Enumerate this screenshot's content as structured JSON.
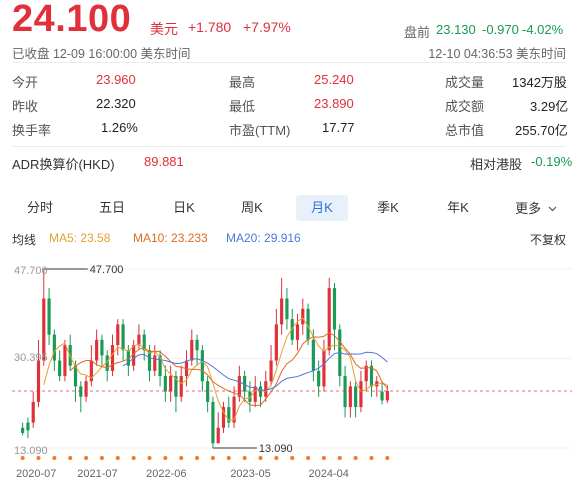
{
  "quote": {
    "price": "24.100",
    "currency": "美元",
    "change": "+1.780",
    "change_pct": "+7.97%",
    "status": "已收盘 12-09 16:00:00 美东时间",
    "premarket_label": "盘前",
    "premarket_price": "23.130",
    "premarket_change": "-0.970",
    "premarket_pct": "-4.02%",
    "premarket_time": "12-10 04:36:53 美东时间"
  },
  "stats": [
    {
      "label": "今开",
      "value": "23.960",
      "color": "#e0303a"
    },
    {
      "label": "最高",
      "value": "25.240",
      "color": "#e0303a"
    },
    {
      "label": "成交量",
      "value": "1342万股",
      "color": "#222222"
    },
    {
      "label": "昨收",
      "value": "22.320",
      "color": "#222222"
    },
    {
      "label": "最低",
      "value": "23.890",
      "color": "#e0303a"
    },
    {
      "label": "成交额",
      "value": "3.29亿",
      "color": "#222222"
    },
    {
      "label": "换手率",
      "value": "1.26%",
      "color": "#222222"
    },
    {
      "label": "市盈(TTM)",
      "value": "17.77",
      "color": "#222222"
    },
    {
      "label": "总市值",
      "value": "255.70亿",
      "color": "#222222"
    }
  ],
  "adr": {
    "label": "ADR换算价(HKD)",
    "value": "89.881",
    "hk_label": "相对港股",
    "hk_value": "-0.19%"
  },
  "tabs": [
    "分时",
    "五日",
    "日K",
    "周K",
    "月K",
    "季K",
    "年K",
    "更多"
  ],
  "active_tab": "月K",
  "ma_legend": {
    "title": "均线",
    "ma5": "MA5: 23.58",
    "ma10": "MA10: 23.233",
    "ma20": "MA20: 29.916",
    "adjust": "不复权"
  },
  "colors": {
    "up": "#e0303a",
    "down": "#1a9a55",
    "ma5": "#e8a030",
    "ma10": "#e06a20",
    "ma20": "#4a78d8",
    "accent": "#2b6fe0"
  },
  "chart_data": {
    "type": "candlestick",
    "y_max_label": "47.700",
    "y_mid_label": "30.395",
    "y_min_label": "13.090",
    "ylim": [
      13.09,
      47.7
    ],
    "high_marker": "47.700",
    "low_marker": "13.090",
    "last_close": 24.1,
    "x_labels": [
      "2020-07",
      "2021-07",
      "2022-06",
      "2023-05",
      "2024-04"
    ],
    "candles": [
      [
        17,
        16,
        18,
        15.5
      ],
      [
        18,
        16.5,
        19,
        15
      ],
      [
        18,
        22,
        24,
        17
      ],
      [
        22,
        30,
        34,
        21
      ],
      [
        30,
        42,
        47.7,
        29
      ],
      [
        42,
        35,
        44,
        33
      ],
      [
        35,
        30,
        36,
        28
      ],
      [
        30,
        27,
        32,
        26
      ],
      [
        27,
        33,
        34,
        26
      ],
      [
        33,
        29,
        35,
        28
      ],
      [
        29,
        25,
        30,
        22
      ],
      [
        25,
        23,
        26,
        20
      ],
      [
        23,
        26,
        27,
        22
      ],
      [
        26,
        30,
        33,
        25
      ],
      [
        30,
        34,
        36,
        29
      ],
      [
        34,
        31,
        35,
        29
      ],
      [
        31,
        28,
        32,
        26
      ],
      [
        28,
        33,
        35,
        27
      ],
      [
        33,
        37,
        38,
        31
      ],
      [
        37,
        32,
        38,
        30
      ],
      [
        32,
        29,
        33,
        27
      ],
      [
        29,
        33,
        34,
        28
      ],
      [
        33,
        35,
        37,
        32
      ],
      [
        35,
        32,
        36,
        30
      ],
      [
        32,
        28,
        33,
        26
      ],
      [
        28,
        31,
        33,
        27
      ],
      [
        31,
        27,
        32,
        25
      ],
      [
        27,
        24,
        29,
        22
      ],
      [
        24,
        27,
        29,
        22
      ],
      [
        27,
        23,
        28,
        20
      ],
      [
        23,
        27,
        29,
        22
      ],
      [
        27,
        30,
        32,
        25
      ],
      [
        30,
        34,
        36,
        29
      ],
      [
        34,
        32,
        35,
        29
      ],
      [
        32,
        26,
        33,
        24
      ],
      [
        26,
        22,
        27,
        20
      ],
      [
        22,
        14,
        23,
        13.09
      ],
      [
        14,
        17,
        20,
        14
      ],
      [
        17,
        21,
        22,
        16
      ],
      [
        21,
        18,
        23,
        17
      ],
      [
        18,
        23,
        25,
        17
      ],
      [
        23,
        27,
        29,
        22
      ],
      [
        27,
        24,
        28,
        22
      ],
      [
        24,
        22,
        26,
        20
      ],
      [
        22,
        25,
        27,
        21
      ],
      [
        25,
        23,
        26,
        21
      ],
      [
        23,
        26,
        28,
        22
      ],
      [
        26,
        30,
        33,
        25
      ],
      [
        30,
        37,
        40,
        29
      ],
      [
        37,
        42,
        46,
        35
      ],
      [
        42,
        38,
        44,
        36
      ],
      [
        38,
        34,
        40,
        33
      ],
      [
        34,
        37,
        39,
        32
      ],
      [
        37,
        40,
        42,
        35
      ],
      [
        40,
        34,
        41,
        33
      ],
      [
        34,
        28,
        36,
        26
      ],
      [
        28,
        25,
        30,
        23
      ],
      [
        25,
        32,
        34,
        24
      ],
      [
        32,
        44,
        46,
        31
      ],
      [
        44,
        36,
        45,
        32
      ],
      [
        36,
        27,
        37,
        25
      ],
      [
        27,
        21,
        29,
        19
      ],
      [
        21,
        25,
        26,
        19
      ],
      [
        25,
        21,
        26,
        19
      ],
      [
        21,
        26,
        28,
        20
      ],
      [
        26,
        29,
        30,
        24
      ],
      [
        29,
        25,
        30,
        23
      ],
      [
        25,
        26,
        27,
        23
      ],
      [
        24,
        22.3,
        26,
        21.5
      ],
      [
        22.3,
        24.1,
        25.24,
        21.8
      ]
    ]
  }
}
